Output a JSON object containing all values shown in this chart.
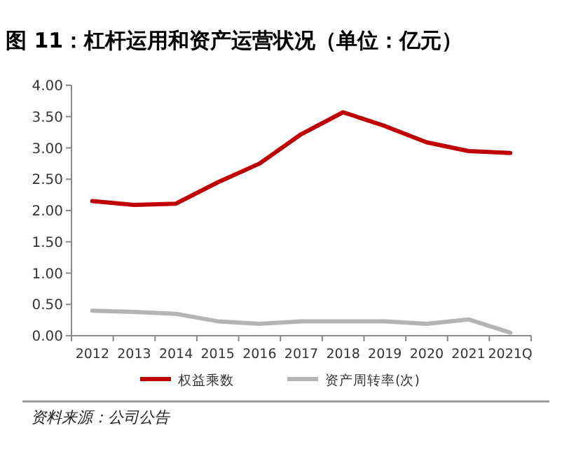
{
  "chart_data": {
    "type": "line",
    "title": "图 11：杠杆运用和资产运营状况（单位：亿元）",
    "categories": [
      "2012",
      "2013",
      "2014",
      "2015",
      "2016",
      "2017",
      "2018",
      "2019",
      "2020",
      "2021",
      "2021Q"
    ],
    "series": [
      {
        "name": "权益乘数",
        "color": "#c00000",
        "values": [
          2.15,
          2.09,
          2.11,
          2.45,
          2.75,
          3.22,
          3.57,
          3.35,
          3.09,
          2.95,
          2.92
        ]
      },
      {
        "name": "资产周转率(次)",
        "color": "#b4b4b4",
        "values": [
          0.4,
          0.38,
          0.35,
          0.23,
          0.19,
          0.23,
          0.23,
          0.23,
          0.19,
          0.26,
          0.05
        ]
      }
    ],
    "ylim": [
      0,
      4
    ],
    "yticks": [
      {
        "value": 0,
        "label": "0.00"
      },
      {
        "value": 0.5,
        "label": "0.50"
      },
      {
        "value": 1,
        "label": "1.00"
      },
      {
        "value": 1.5,
        "label": "1.50"
      },
      {
        "value": 2,
        "label": "2.00"
      },
      {
        "value": 2.5,
        "label": "2.50"
      },
      {
        "value": 3,
        "label": "3.00"
      },
      {
        "value": 3.5,
        "label": "3.50"
      },
      {
        "value": 4,
        "label": "4.00"
      }
    ],
    "grid": false,
    "legend": "bottom",
    "marker": "none",
    "line_style": "solid",
    "annotations": [
      "资料来源：公司公告"
    ]
  }
}
